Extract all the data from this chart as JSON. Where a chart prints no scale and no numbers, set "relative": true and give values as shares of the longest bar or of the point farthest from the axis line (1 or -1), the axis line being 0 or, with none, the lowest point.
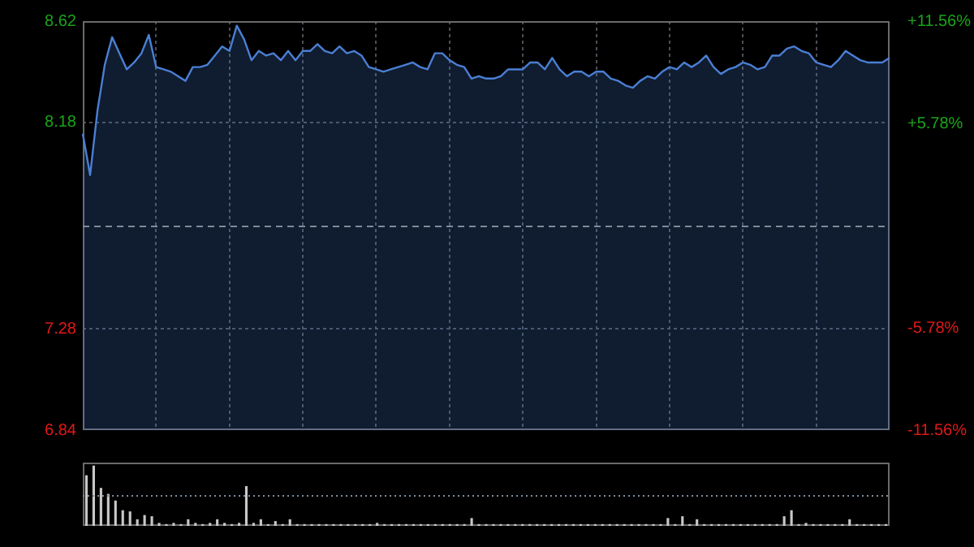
{
  "chart_data": [
    {
      "type": "area",
      "categories": [
        null,
        null,
        null,
        null,
        null,
        null,
        null,
        null,
        null,
        null,
        null,
        null,
        null,
        null,
        null,
        null,
        null,
        null,
        null,
        null,
        null,
        null,
        null,
        null,
        null,
        null,
        null,
        null,
        null,
        null,
        null,
        null,
        null,
        null,
        null,
        null,
        null,
        null,
        null,
        null,
        null,
        null,
        null,
        null,
        null,
        null,
        null,
        null,
        null,
        null,
        null,
        null,
        null,
        null,
        null,
        null,
        null,
        null,
        null,
        null,
        null,
        null,
        null,
        null,
        null,
        null,
        null,
        null,
        null,
        null,
        null,
        null,
        null,
        null,
        null,
        null,
        null,
        null,
        null,
        null,
        null,
        null,
        null,
        null,
        null,
        null,
        null,
        null,
        null,
        null,
        null,
        null,
        null,
        null,
        null,
        null,
        null,
        null,
        null,
        null,
        null,
        null,
        null,
        null,
        null,
        null,
        null,
        null,
        null,
        null,
        null
      ],
      "series": [
        {
          "color": "#4a7fd4",
          "values": [
            8.13,
            7.95,
            8.23,
            8.43,
            8.55,
            8.48,
            8.41,
            8.44,
            8.48,
            8.56,
            8.42,
            8.41,
            8.4,
            8.38,
            8.36,
            8.42,
            8.42,
            8.43,
            8.47,
            8.51,
            8.49,
            8.6,
            8.54,
            8.45,
            8.49,
            8.47,
            8.48,
            8.45,
            8.49,
            8.45,
            8.49,
            8.49,
            8.52,
            8.49,
            8.48,
            8.51,
            8.48,
            8.49,
            8.47,
            8.42,
            8.41,
            8.4,
            8.41,
            8.42,
            8.43,
            8.44,
            8.42,
            8.41,
            8.48,
            8.48,
            8.45,
            8.43,
            8.42,
            8.37,
            8.38,
            8.37,
            8.37,
            8.38,
            8.41,
            8.41,
            8.41,
            8.44,
            8.44,
            8.41,
            8.46,
            8.41,
            8.38,
            8.4,
            8.4,
            8.38,
            8.4,
            8.4,
            8.37,
            8.36,
            8.34,
            8.33,
            8.36,
            8.38,
            8.37,
            8.4,
            8.42,
            8.41,
            8.44,
            8.42,
            8.44,
            8.47,
            8.42,
            8.39,
            8.41,
            8.42,
            8.44,
            8.43,
            8.41,
            8.42,
            8.47,
            8.47,
            8.5,
            8.51,
            8.49,
            8.48,
            8.44,
            8.43,
            8.42,
            8.45,
            8.49,
            8.47,
            8.45,
            8.44,
            8.44,
            8.44,
            8.46
          ]
        }
      ],
      "ylim": [
        6.84,
        8.62
      ],
      "yticks": [
        8.62,
        8.18,
        7.28,
        6.84
      ],
      "y2lim": [
        -11.56,
        11.56
      ],
      "y2ticks": [
        {
          "value": 11.56,
          "label": "+11.56%"
        },
        {
          "value": 5.78,
          "label": "+5.78%"
        },
        {
          "value": -5.78,
          "label": "-5.78%"
        },
        {
          "value": -11.56,
          "label": "-11.56%"
        }
      ],
      "grid": true,
      "legend": false,
      "ref_lines": [
        {
          "axis": "y",
          "value": 7.73,
          "line_style": "dashed"
        }
      ]
    },
    {
      "type": "bar",
      "relative": true,
      "color": "#c8c8c8",
      "categories": [
        null,
        null,
        null,
        null,
        null,
        null,
        null,
        null,
        null,
        null,
        null,
        null,
        null,
        null,
        null,
        null,
        null,
        null,
        null,
        null,
        null,
        null,
        null,
        null,
        null,
        null,
        null,
        null,
        null,
        null,
        null,
        null,
        null,
        null,
        null,
        null,
        null,
        null,
        null,
        null,
        null,
        null,
        null,
        null,
        null,
        null,
        null,
        null,
        null,
        null,
        null,
        null,
        null,
        null,
        null,
        null,
        null,
        null,
        null,
        null,
        null,
        null,
        null,
        null,
        null,
        null,
        null,
        null,
        null,
        null,
        null,
        null,
        null,
        null,
        null,
        null,
        null,
        null,
        null,
        null,
        null,
        null,
        null,
        null,
        null,
        null,
        null,
        null,
        null,
        null,
        null,
        null,
        null,
        null,
        null,
        null,
        null,
        null,
        null,
        null,
        null,
        null,
        null,
        null,
        null,
        null,
        null,
        null,
        null,
        null,
        null
      ],
      "values": [
        0.84,
        1,
        0.63,
        0.53,
        0.42,
        0.26,
        0.24,
        0.11,
        0.18,
        0.16,
        0.05,
        0.03,
        0.05,
        0.03,
        0.11,
        0.05,
        0.03,
        0.05,
        0.11,
        0.05,
        0.03,
        0.05,
        0.66,
        0.05,
        0.11,
        0.03,
        0.08,
        0.03,
        0.11,
        0.03,
        0.03,
        0.03,
        0.03,
        0.03,
        0.03,
        0.03,
        0.03,
        0.03,
        0.03,
        0.03,
        0.05,
        0.03,
        0.03,
        0.03,
        0.03,
        0.03,
        0.03,
        0.03,
        0.03,
        0.03,
        0.03,
        0.03,
        0.03,
        0.13,
        0.03,
        0.03,
        0.03,
        0.03,
        0.03,
        0.03,
        0.03,
        0.03,
        0.03,
        0.03,
        0.03,
        0.03,
        0.03,
        0.03,
        0.03,
        0.03,
        0.03,
        0.03,
        0.03,
        0.03,
        0.03,
        0.03,
        0.03,
        0.03,
        0.03,
        0.03,
        0.13,
        0.03,
        0.16,
        0.03,
        0.11,
        0.03,
        0.03,
        0.03,
        0.03,
        0.03,
        0.03,
        0.03,
        0.03,
        0.03,
        0.03,
        0.03,
        0.16,
        0.26,
        0.03,
        0.05,
        0.03,
        0.03,
        0.03,
        0.03,
        0.03,
        0.11,
        0.03,
        0.03,
        0.03,
        0.03,
        0.03
      ],
      "ref_lines": [
        {
          "axis": "y",
          "value": 0.5,
          "line_style": "dotted"
        }
      ]
    }
  ]
}
